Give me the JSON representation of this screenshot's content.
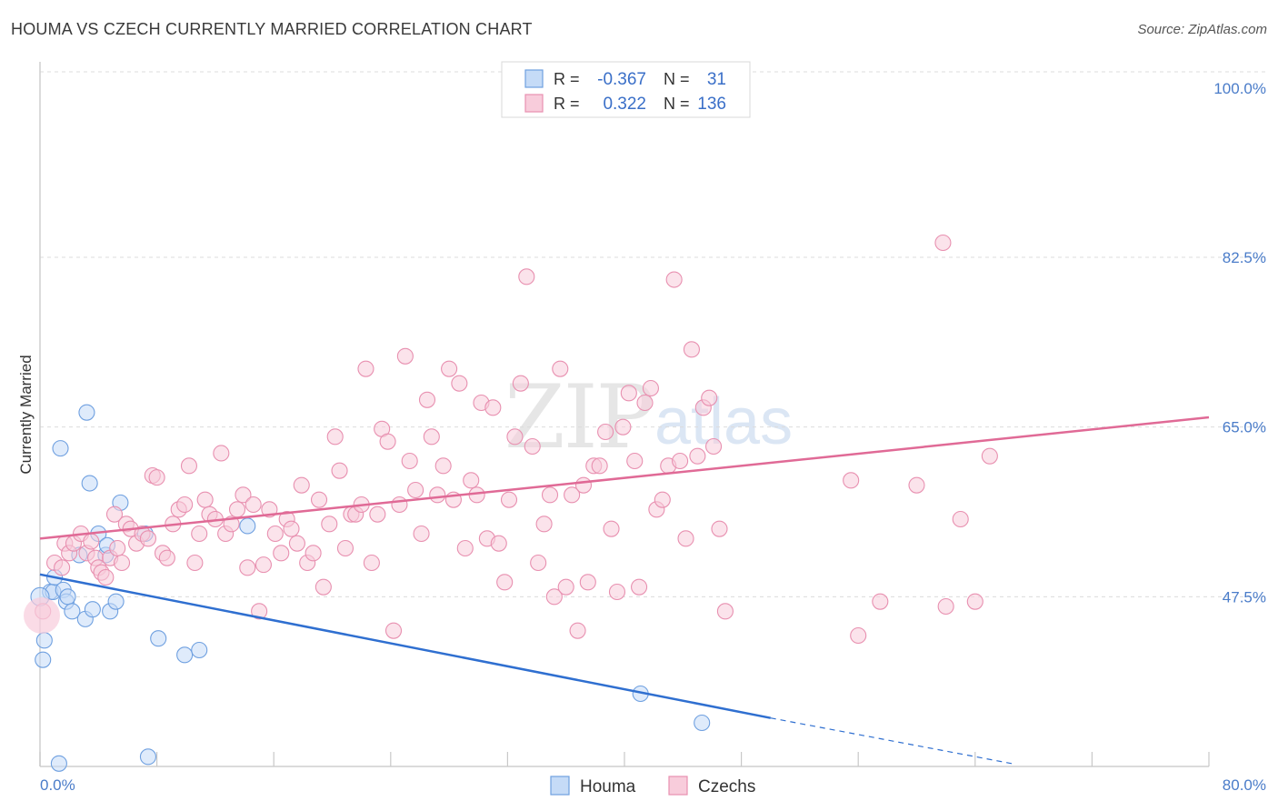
{
  "title": "HOUMA VS CZECH CURRENTLY MARRIED CORRELATION CHART",
  "source": "Source: ZipAtlas.com",
  "chart_data": {
    "type": "scatter",
    "title": "HOUMA VS CZECH CURRENTLY MARRIED CORRELATION CHART",
    "xlabel": "",
    "ylabel": "Currently Married",
    "xlim": [
      0,
      80
    ],
    "ylim": [
      30,
      102
    ],
    "x_tick_labels": [
      "0.0%",
      "80.0%"
    ],
    "y_ticks": [
      47.5,
      65.0,
      82.5,
      100.0
    ],
    "y_tick_labels": [
      "47.5%",
      "65.0%",
      "82.5%",
      "100.0%"
    ],
    "grid": true,
    "legend_position": "bottom-center",
    "watermark": "ZIPatlas",
    "stats_box": [
      {
        "series": "Houma",
        "r_label": "R = ",
        "r": "-0.367",
        "n_label": "N = ",
        "n": "31"
      },
      {
        "series": "Czechs",
        "r_label": "R = ",
        "r": "0.322",
        "n_label": "N = ",
        "n": "136"
      }
    ],
    "series": [
      {
        "name": "Houma",
        "color": "#6fa0e0",
        "fill": "#c5dbf7",
        "trend_color": "#2f6fd0",
        "trend": {
          "x0": 0,
          "y0": 49.8,
          "x1": 50,
          "y1": 35.0,
          "dash_to_x": 66.5,
          "dash_y": 30.3
        },
        "points": [
          [
            0.2,
            41.0
          ],
          [
            0.3,
            43.0
          ],
          [
            0.7,
            48.0
          ],
          [
            0.9,
            48.0
          ],
          [
            1.0,
            49.5
          ],
          [
            1.3,
            30.3
          ],
          [
            1.4,
            62.8
          ],
          [
            1.6,
            48.2
          ],
          [
            1.8,
            47.0
          ],
          [
            1.9,
            47.5
          ],
          [
            2.2,
            46.0
          ],
          [
            2.7,
            51.8
          ],
          [
            3.1,
            45.2
          ],
          [
            3.4,
            59.2
          ],
          [
            3.6,
            46.2
          ],
          [
            4.0,
            54.0
          ],
          [
            4.5,
            51.8
          ],
          [
            4.6,
            52.8
          ],
          [
            4.8,
            46.0
          ],
          [
            5.2,
            47.0
          ],
          [
            5.5,
            57.2
          ],
          [
            3.2,
            66.5
          ],
          [
            7.2,
            54.0
          ],
          [
            7.4,
            31.0
          ],
          [
            8.1,
            43.2
          ],
          [
            9.9,
            41.5
          ],
          [
            10.9,
            42.0
          ],
          [
            14.2,
            54.8
          ],
          [
            41.1,
            37.5
          ],
          [
            45.3,
            34.5
          ],
          [
            0.0,
            47.5
          ]
        ]
      },
      {
        "name": "Czechs",
        "color": "#e890b0",
        "fill": "#f8ccdb",
        "trend_color": "#e06a96",
        "trend": {
          "x0": 0,
          "y0": 53.5,
          "x1": 80,
          "y1": 66.0
        },
        "points": [
          [
            0.2,
            46.0
          ],
          [
            1.0,
            51.0
          ],
          [
            1.5,
            50.5
          ],
          [
            1.7,
            53.0
          ],
          [
            2.0,
            52.0
          ],
          [
            2.3,
            53.0
          ],
          [
            2.8,
            54.0
          ],
          [
            3.2,
            52.0
          ],
          [
            3.5,
            53.2
          ],
          [
            3.8,
            51.5
          ],
          [
            4.0,
            50.5
          ],
          [
            4.2,
            50.0
          ],
          [
            4.5,
            49.5
          ],
          [
            4.8,
            51.5
          ],
          [
            5.1,
            56.0
          ],
          [
            5.3,
            52.5
          ],
          [
            5.6,
            51.0
          ],
          [
            5.9,
            55.0
          ],
          [
            6.2,
            54.5
          ],
          [
            6.6,
            53.0
          ],
          [
            7.0,
            54.0
          ],
          [
            7.4,
            53.5
          ],
          [
            7.7,
            60.0
          ],
          [
            8.0,
            59.8
          ],
          [
            8.4,
            52.0
          ],
          [
            8.7,
            51.5
          ],
          [
            9.1,
            55.0
          ],
          [
            9.5,
            56.5
          ],
          [
            9.9,
            57.0
          ],
          [
            10.2,
            61.0
          ],
          [
            10.6,
            51.0
          ],
          [
            10.9,
            54.0
          ],
          [
            11.3,
            57.5
          ],
          [
            11.6,
            56.0
          ],
          [
            12.0,
            55.5
          ],
          [
            12.4,
            62.3
          ],
          [
            12.7,
            54.0
          ],
          [
            13.1,
            55.0
          ],
          [
            13.5,
            56.5
          ],
          [
            13.9,
            58.0
          ],
          [
            14.2,
            50.5
          ],
          [
            14.6,
            57.0
          ],
          [
            15.0,
            46.0
          ],
          [
            15.3,
            50.8
          ],
          [
            15.7,
            56.5
          ],
          [
            16.1,
            54.0
          ],
          [
            16.5,
            52.0
          ],
          [
            16.9,
            55.5
          ],
          [
            17.2,
            54.5
          ],
          [
            17.6,
            53.0
          ],
          [
            17.9,
            59.0
          ],
          [
            18.3,
            51.0
          ],
          [
            18.7,
            52.0
          ],
          [
            19.1,
            57.5
          ],
          [
            19.4,
            48.5
          ],
          [
            19.8,
            55.0
          ],
          [
            20.2,
            64.0
          ],
          [
            20.5,
            60.5
          ],
          [
            20.9,
            52.5
          ],
          [
            21.3,
            56.0
          ],
          [
            21.6,
            56.0
          ],
          [
            22.0,
            57.0
          ],
          [
            22.3,
            71.0
          ],
          [
            22.7,
            51.0
          ],
          [
            23.1,
            56.0
          ],
          [
            23.4,
            64.8
          ],
          [
            23.8,
            63.5
          ],
          [
            24.2,
            44.0
          ],
          [
            24.6,
            57.0
          ],
          [
            25.0,
            72.3
          ],
          [
            25.3,
            61.5
          ],
          [
            25.7,
            58.5
          ],
          [
            26.1,
            54.0
          ],
          [
            26.5,
            67.8
          ],
          [
            26.8,
            64.0
          ],
          [
            27.2,
            58.0
          ],
          [
            27.6,
            61.0
          ],
          [
            28.0,
            71.0
          ],
          [
            28.3,
            57.5
          ],
          [
            28.7,
            69.5
          ],
          [
            29.1,
            52.5
          ],
          [
            29.5,
            59.5
          ],
          [
            29.9,
            58.0
          ],
          [
            30.2,
            67.5
          ],
          [
            30.6,
            53.5
          ],
          [
            31.0,
            67.0
          ],
          [
            31.4,
            53.0
          ],
          [
            31.8,
            49.0
          ],
          [
            32.1,
            57.5
          ],
          [
            32.5,
            64.0
          ],
          [
            32.9,
            69.5
          ],
          [
            33.3,
            80.5
          ],
          [
            33.7,
            63.0
          ],
          [
            34.1,
            51.0
          ],
          [
            34.5,
            55.0
          ],
          [
            34.9,
            58.0
          ],
          [
            35.2,
            47.5
          ],
          [
            35.6,
            71.0
          ],
          [
            36.0,
            48.5
          ],
          [
            36.4,
            58.0
          ],
          [
            36.8,
            44.0
          ],
          [
            37.2,
            59.0
          ],
          [
            37.5,
            49.0
          ],
          [
            37.9,
            61.0
          ],
          [
            38.3,
            61.0
          ],
          [
            38.7,
            64.5
          ],
          [
            39.1,
            54.5
          ],
          [
            39.5,
            48.0
          ],
          [
            39.9,
            65.0
          ],
          [
            40.3,
            68.5
          ],
          [
            40.7,
            61.5
          ],
          [
            41.0,
            48.5
          ],
          [
            41.4,
            67.5
          ],
          [
            41.8,
            69.0
          ],
          [
            42.2,
            56.5
          ],
          [
            42.6,
            57.5
          ],
          [
            43.0,
            61.0
          ],
          [
            43.4,
            80.2
          ],
          [
            43.8,
            61.5
          ],
          [
            44.2,
            53.5
          ],
          [
            44.6,
            73.0
          ],
          [
            45.0,
            62.0
          ],
          [
            45.4,
            67.0
          ],
          [
            45.8,
            68.0
          ],
          [
            46.1,
            63.0
          ],
          [
            46.5,
            54.5
          ],
          [
            46.9,
            46.0
          ],
          [
            55.5,
            59.5
          ],
          [
            56.0,
            43.5
          ],
          [
            57.5,
            47.0
          ],
          [
            60.0,
            59.0
          ],
          [
            61.8,
            84.0
          ],
          [
            62.0,
            46.5
          ],
          [
            63.0,
            55.5
          ],
          [
            64.0,
            47.0
          ],
          [
            65.0,
            62.0
          ]
        ]
      }
    ]
  }
}
